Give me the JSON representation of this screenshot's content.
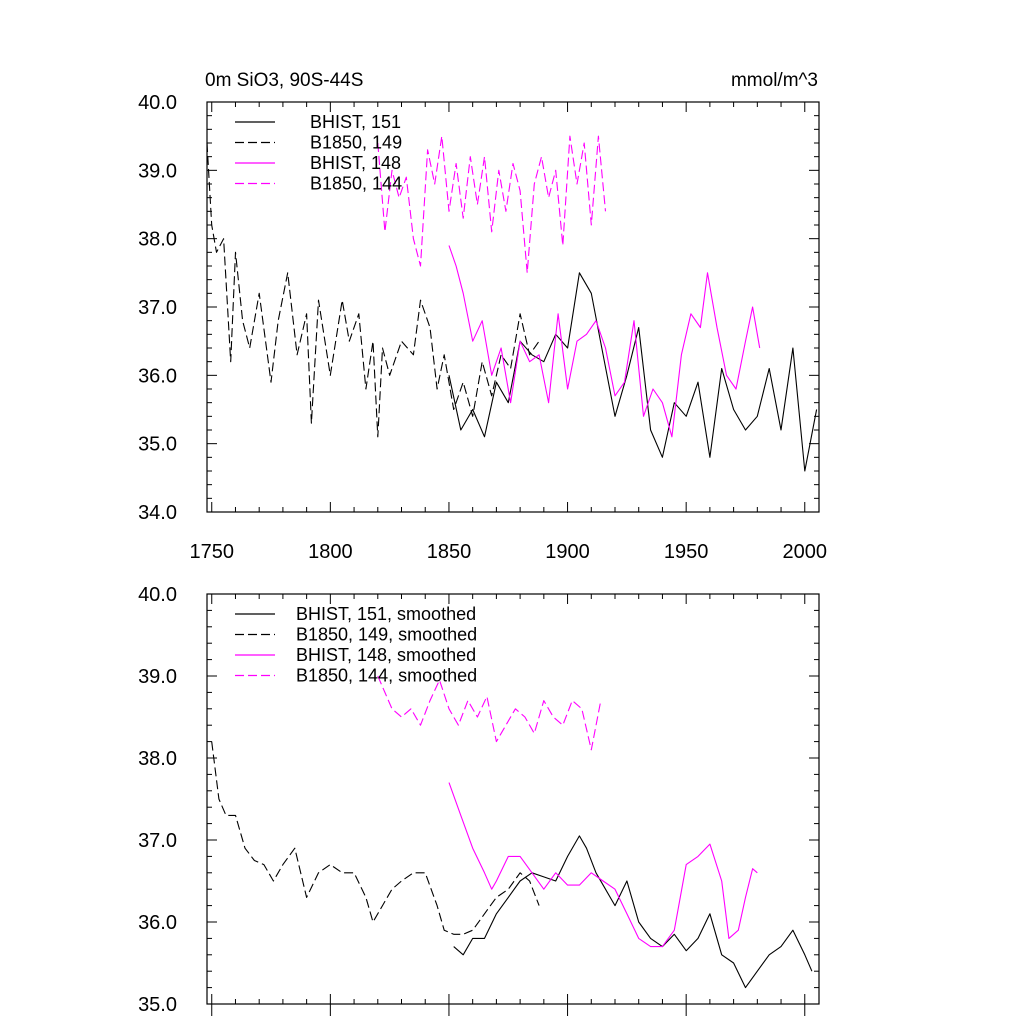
{
  "colors": {
    "BHIST": "#000000",
    "B1850_black": "#000000",
    "magenta": "#ff00ff"
  },
  "chart_data": [
    {
      "type": "line",
      "title": "0m SiO3, 90S-44S",
      "units": "mmol/m^3",
      "xlim": [
        1748,
        2006
      ],
      "ylim": [
        34.0,
        40.0
      ],
      "xticks": [
        1750,
        1800,
        1850,
        1900,
        1950,
        2000
      ],
      "yticks": [
        34.0,
        35.0,
        36.0,
        37.0,
        38.0,
        39.0,
        40.0
      ],
      "ytick_labels": [
        "34.0",
        "35.0",
        "36.0",
        "37.0",
        "38.0",
        "39.0",
        "40.0"
      ],
      "legend": "top-left",
      "series": [
        {
          "name": "BHIST, 151",
          "color": "#000000",
          "dash": "solid",
          "x": [
            1850,
            1855,
            1860,
            1865,
            1870,
            1875,
            1880,
            1885,
            1890,
            1895,
            1900,
            1905,
            1910,
            1915,
            1920,
            1925,
            1930,
            1935,
            1940,
            1945,
            1950,
            1955,
            1960,
            1965,
            1970,
            1975,
            1980,
            1985,
            1990,
            1995,
            2000,
            2005
          ],
          "y": [
            36.0,
            35.2,
            35.5,
            35.1,
            35.9,
            35.6,
            36.5,
            36.3,
            36.2,
            36.6,
            36.4,
            37.5,
            37.2,
            36.3,
            35.4,
            36.0,
            36.7,
            35.2,
            34.8,
            35.6,
            35.4,
            35.9,
            34.8,
            36.1,
            35.5,
            35.2,
            35.4,
            36.1,
            35.2,
            36.4,
            34.6,
            35.5
          ]
        },
        {
          "name": "B1850, 149",
          "color": "#000000",
          "dash": "dashed",
          "x": [
            1748,
            1750,
            1752,
            1755,
            1758,
            1760,
            1763,
            1766,
            1770,
            1775,
            1778,
            1782,
            1786,
            1790,
            1792,
            1795,
            1800,
            1805,
            1808,
            1812,
            1815,
            1818,
            1820,
            1822,
            1825,
            1830,
            1835,
            1838,
            1842,
            1845,
            1848,
            1852,
            1856,
            1860,
            1864,
            1868,
            1872,
            1876,
            1880,
            1884,
            1888
          ],
          "y": [
            39.4,
            38.2,
            37.8,
            38.0,
            36.2,
            37.8,
            36.8,
            36.4,
            37.2,
            35.9,
            36.8,
            37.5,
            36.3,
            36.9,
            35.3,
            37.1,
            36.0,
            37.1,
            36.5,
            36.9,
            35.8,
            36.5,
            35.1,
            36.4,
            36.0,
            36.5,
            36.3,
            37.1,
            36.7,
            35.8,
            36.3,
            35.5,
            35.9,
            35.4,
            36.2,
            35.7,
            36.3,
            36.1,
            36.9,
            36.3,
            36.5
          ]
        },
        {
          "name": "BHIST, 148",
          "color": "#ff00ff",
          "dash": "solid",
          "x": [
            1850,
            1853,
            1856,
            1860,
            1864,
            1868,
            1872,
            1876,
            1880,
            1884,
            1888,
            1892,
            1896,
            1900,
            1904,
            1908,
            1912,
            1916,
            1920,
            1924,
            1928,
            1932,
            1936,
            1940,
            1944,
            1948,
            1952,
            1956,
            1959,
            1963,
            1967,
            1971,
            1975,
            1978,
            1981
          ],
          "y": [
            37.9,
            37.6,
            37.2,
            36.5,
            36.8,
            36.0,
            36.4,
            35.6,
            36.5,
            36.2,
            36.3,
            35.6,
            36.9,
            35.8,
            36.5,
            36.6,
            36.8,
            36.4,
            35.7,
            35.9,
            36.8,
            35.4,
            35.8,
            35.6,
            35.1,
            36.3,
            36.9,
            36.7,
            37.5,
            36.7,
            36.0,
            35.8,
            36.5,
            37.0,
            36.4
          ]
        },
        {
          "name": "B1850, 144",
          "color": "#ff00ff",
          "dash": "dashed",
          "x": [
            1820,
            1823,
            1826,
            1829,
            1832,
            1835,
            1838,
            1841,
            1844,
            1847,
            1850,
            1853,
            1856,
            1859,
            1862,
            1865,
            1868,
            1871,
            1874,
            1877,
            1880,
            1883,
            1886,
            1889,
            1892,
            1895,
            1898,
            1901,
            1904,
            1907,
            1910,
            1913,
            1916
          ],
          "y": [
            39.4,
            38.1,
            39.0,
            38.6,
            38.9,
            38.0,
            37.6,
            39.3,
            38.8,
            39.5,
            38.4,
            39.1,
            38.3,
            39.2,
            38.5,
            39.2,
            38.1,
            39.0,
            38.4,
            39.1,
            38.7,
            37.5,
            38.8,
            39.2,
            38.6,
            39.0,
            37.9,
            39.5,
            38.8,
            39.4,
            38.2,
            39.5,
            38.4
          ]
        }
      ]
    },
    {
      "type": "line",
      "xlim": [
        1748,
        2006
      ],
      "ylim": [
        35.0,
        40.0
      ],
      "xticks": [
        1750,
        1800,
        1850,
        1900,
        1950,
        2000
      ],
      "yticks": [
        35.0,
        36.0,
        37.0,
        38.0,
        39.0,
        40.0
      ],
      "ytick_labels": [
        "35.0",
        "36.0",
        "37.0",
        "38.0",
        "39.0",
        "40.0"
      ],
      "legend": "top-left",
      "series": [
        {
          "name": "BHIST, 151, smoothed",
          "color": "#000000",
          "dash": "solid",
          "x": [
            1852,
            1856,
            1860,
            1865,
            1870,
            1875,
            1880,
            1885,
            1890,
            1895,
            1900,
            1905,
            1908,
            1912,
            1916,
            1920,
            1925,
            1930,
            1935,
            1940,
            1945,
            1950,
            1955,
            1960,
            1965,
            1970,
            1975,
            1980,
            1985,
            1990,
            1995,
            2000,
            2003
          ],
          "y": [
            35.7,
            35.6,
            35.8,
            35.8,
            36.1,
            36.3,
            36.5,
            36.6,
            36.55,
            36.5,
            36.8,
            37.05,
            36.9,
            36.6,
            36.4,
            36.2,
            36.5,
            36.0,
            35.8,
            35.7,
            35.85,
            35.65,
            35.8,
            36.1,
            35.6,
            35.5,
            35.2,
            35.4,
            35.6,
            35.7,
            35.9,
            35.6,
            35.4
          ]
        },
        {
          "name": "B1850, 149, smoothed",
          "color": "#000000",
          "dash": "dashed",
          "x": [
            1750,
            1753,
            1756,
            1760,
            1764,
            1768,
            1772,
            1776,
            1780,
            1785,
            1790,
            1795,
            1800,
            1805,
            1810,
            1815,
            1818,
            1822,
            1826,
            1830,
            1835,
            1840,
            1845,
            1848,
            1852,
            1856,
            1860,
            1865,
            1870,
            1875,
            1880,
            1884,
            1888
          ],
          "y": [
            38.2,
            37.5,
            37.3,
            37.3,
            36.9,
            36.75,
            36.7,
            36.5,
            36.7,
            36.9,
            36.3,
            36.6,
            36.7,
            36.6,
            36.6,
            36.3,
            36.0,
            36.2,
            36.4,
            36.5,
            36.6,
            36.6,
            36.2,
            35.9,
            35.85,
            35.85,
            35.9,
            36.1,
            36.3,
            36.4,
            36.6,
            36.5,
            36.2
          ]
        },
        {
          "name": "BHIST, 148, smoothed",
          "color": "#ff00ff",
          "dash": "solid",
          "x": [
            1850,
            1855,
            1860,
            1865,
            1868,
            1870,
            1875,
            1880,
            1885,
            1890,
            1895,
            1900,
            1905,
            1910,
            1915,
            1920,
            1925,
            1930,
            1935,
            1940,
            1945,
            1950,
            1955,
            1960,
            1965,
            1968,
            1972,
            1975,
            1978,
            1980
          ],
          "y": [
            37.7,
            37.3,
            36.9,
            36.6,
            36.4,
            36.5,
            36.8,
            36.8,
            36.6,
            36.4,
            36.6,
            36.45,
            36.45,
            36.6,
            36.5,
            36.4,
            36.1,
            35.8,
            35.7,
            35.7,
            35.9,
            36.7,
            36.8,
            36.95,
            36.5,
            35.8,
            35.9,
            36.3,
            36.65,
            36.6
          ]
        },
        {
          "name": "B1850, 144, smoothed",
          "color": "#ff00ff",
          "dash": "dashed",
          "x": [
            1820,
            1823,
            1826,
            1830,
            1834,
            1838,
            1842,
            1846,
            1850,
            1854,
            1858,
            1862,
            1866,
            1870,
            1874,
            1878,
            1882,
            1886,
            1890,
            1894,
            1898,
            1902,
            1906,
            1910,
            1914
          ],
          "y": [
            39.0,
            38.8,
            38.6,
            38.5,
            38.6,
            38.4,
            38.7,
            38.95,
            38.6,
            38.4,
            38.7,
            38.5,
            38.75,
            38.2,
            38.4,
            38.6,
            38.5,
            38.3,
            38.7,
            38.5,
            38.4,
            38.7,
            38.6,
            38.1,
            38.7
          ]
        }
      ]
    }
  ]
}
